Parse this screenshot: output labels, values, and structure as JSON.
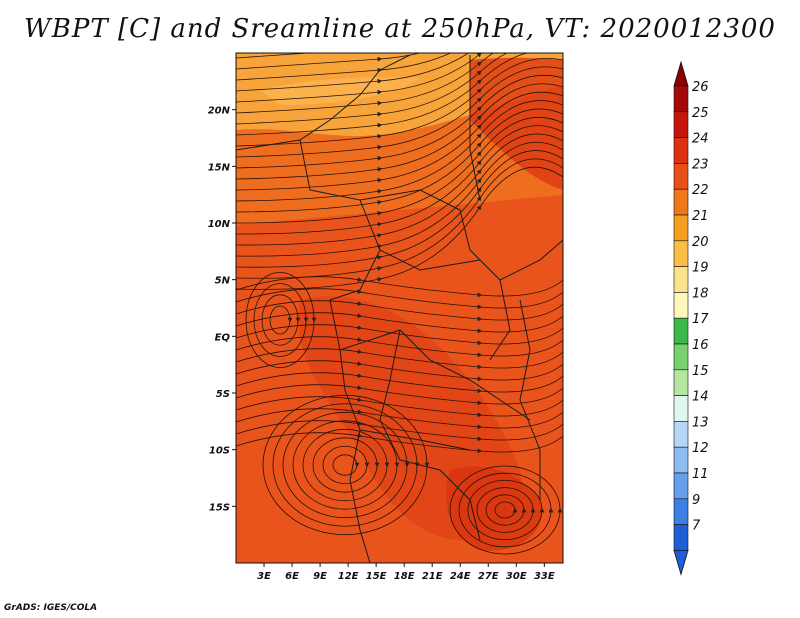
{
  "title": "WBPT [C] and Sreamline at 250hPa, VT: 2020012300",
  "credit": "GrADS: IGES/COLA",
  "map": {
    "lat_range": [
      -20,
      25
    ],
    "lon_range": [
      0,
      35
    ],
    "lat_ticks": [
      {
        "value": 20,
        "label": "20N"
      },
      {
        "value": 15,
        "label": "15N"
      },
      {
        "value": 10,
        "label": "10N"
      },
      {
        "value": 5,
        "label": "5N"
      },
      {
        "value": 0,
        "label": "EQ"
      },
      {
        "value": -5,
        "label": "5S"
      },
      {
        "value": -10,
        "label": "10S"
      },
      {
        "value": -15,
        "label": "15S"
      }
    ],
    "lon_ticks": [
      {
        "value": 3,
        "label": "3E"
      },
      {
        "value": 6,
        "label": "6E"
      },
      {
        "value": 9,
        "label": "9E"
      },
      {
        "value": 12,
        "label": "12E"
      },
      {
        "value": 15,
        "label": "15E"
      },
      {
        "value": 18,
        "label": "18E"
      },
      {
        "value": 21,
        "label": "21E"
      },
      {
        "value": 24,
        "label": "24E"
      },
      {
        "value": 27,
        "label": "27E"
      },
      {
        "value": 30,
        "label": "30E"
      },
      {
        "value": 33,
        "label": "33E"
      }
    ],
    "regions": [
      {
        "name": "north-cool-band",
        "color": "#f7a43a"
      },
      {
        "name": "sahel-band",
        "color": "#ef6d1f"
      },
      {
        "name": "main-field",
        "color": "#e9541c"
      },
      {
        "name": "warm-core",
        "color": "#dd3a12"
      }
    ]
  },
  "colorbar": {
    "levels": [
      {
        "label": "26",
        "color": "#a50a0a"
      },
      {
        "label": "25",
        "color": "#c8140c"
      },
      {
        "label": "24",
        "color": "#dc3212"
      },
      {
        "label": "23",
        "color": "#e8501a"
      },
      {
        "label": "22",
        "color": "#f07818"
      },
      {
        "label": "21",
        "color": "#f5a01e"
      },
      {
        "label": "20",
        "color": "#fabd46"
      },
      {
        "label": "19",
        "color": "#fde28c"
      },
      {
        "label": "18",
        "color": "#fff6be"
      },
      {
        "label": "17",
        "color": "#3cb94a"
      },
      {
        "label": "16",
        "color": "#78d26e"
      },
      {
        "label": "15",
        "color": "#b4e6a0"
      },
      {
        "label": "14",
        "color": "#e1f6f0"
      },
      {
        "label": "13",
        "color": "#b4d7f5"
      },
      {
        "label": "12",
        "color": "#8cbcf0"
      },
      {
        "label": "11",
        "color": "#64a0eb"
      },
      {
        "label": "9",
        "color": "#3c80e6"
      },
      {
        "label": "7",
        "color": "#1e5fd8"
      }
    ],
    "top_arrow_color": "#8c0000",
    "bottom_arrow_color": "#1e5fd8"
  }
}
